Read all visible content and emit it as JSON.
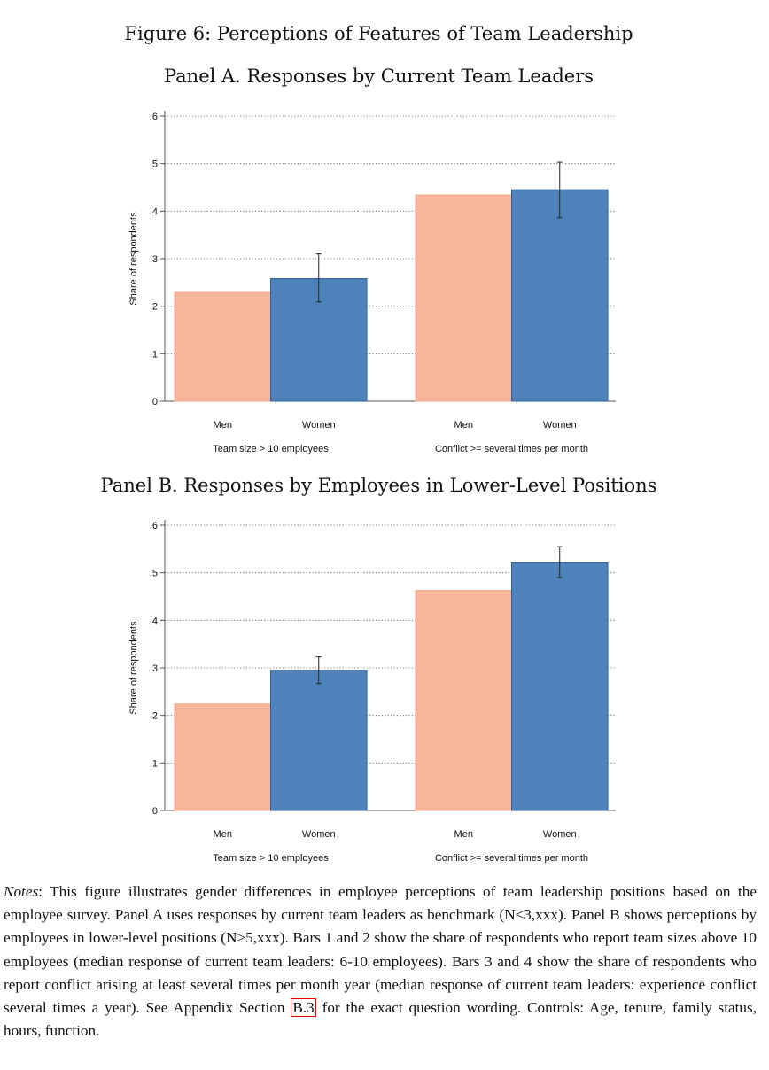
{
  "figure_title": "Figure 6: Perceptions of Features of Team Leadership",
  "chart_data": [
    {
      "type": "bar",
      "title": "Panel A. Responses by Current Team Leaders",
      "ylabel": "Share of respondents",
      "ylim": [
        0,
        0.6
      ],
      "yticks": [
        0,
        0.1,
        0.2,
        0.3,
        0.4,
        0.5,
        0.6
      ],
      "ytick_labels": [
        "0",
        ".1",
        ".2",
        ".3",
        ".4",
        ".5",
        ".6"
      ],
      "grid": "horizontal dotted",
      "groups": [
        "Team size > 10 employees",
        "Conflict >= several times per month"
      ],
      "categories": [
        "Men",
        "Women"
      ],
      "colors": {
        "Men": "#f5b699",
        "Women": "#4e84bb"
      },
      "series": [
        {
          "name": "Men",
          "values": [
            0.229,
            0.434
          ]
        },
        {
          "name": "Women",
          "values": [
            0.258,
            0.445
          ],
          "ci_low": [
            0.209,
            0.386
          ],
          "ci_high": [
            0.31,
            0.503
          ]
        }
      ]
    },
    {
      "type": "bar",
      "title": "Panel B. Responses by Employees in Lower-Level Positions",
      "ylabel": "Share of respondents",
      "ylim": [
        0,
        0.6
      ],
      "yticks": [
        0,
        0.1,
        0.2,
        0.3,
        0.4,
        0.5,
        0.6
      ],
      "ytick_labels": [
        "0",
        ".1",
        ".2",
        ".3",
        ".4",
        ".5",
        ".6"
      ],
      "grid": "horizontal dotted",
      "groups": [
        "Team size > 10 employees",
        "Conflict >= several times per month"
      ],
      "categories": [
        "Men",
        "Women"
      ],
      "colors": {
        "Men": "#f5b699",
        "Women": "#4e84bb"
      },
      "series": [
        {
          "name": "Men",
          "values": [
            0.224,
            0.463
          ]
        },
        {
          "name": "Women",
          "values": [
            0.295,
            0.521
          ],
          "ci_low": [
            0.267,
            0.49
          ],
          "ci_high": [
            0.323,
            0.555
          ]
        }
      ]
    }
  ],
  "notes": {
    "label": "Notes",
    "text_before_ref": ": This figure illustrates gender differences in employee perceptions of team leadership positions based on the employee survey. Panel A uses responses by current team leaders as benchmark (N<3,xxx). Panel B shows perceptions by employees in lower-level positions (N>5,xxx). Bars 1 and 2 show the share of respondents who report team sizes above 10 employees (median response of current team leaders: 6-10 employees). Bars 3 and 4 show the share of respondents who report conflict arising at least several times per month year (median response of current team leaders: experience conflict several times a year). See Appendix Section ",
    "ref": "B.3",
    "text_after_ref": " for the exact question wording. Controls: Age, tenure, family status, hours, function."
  }
}
